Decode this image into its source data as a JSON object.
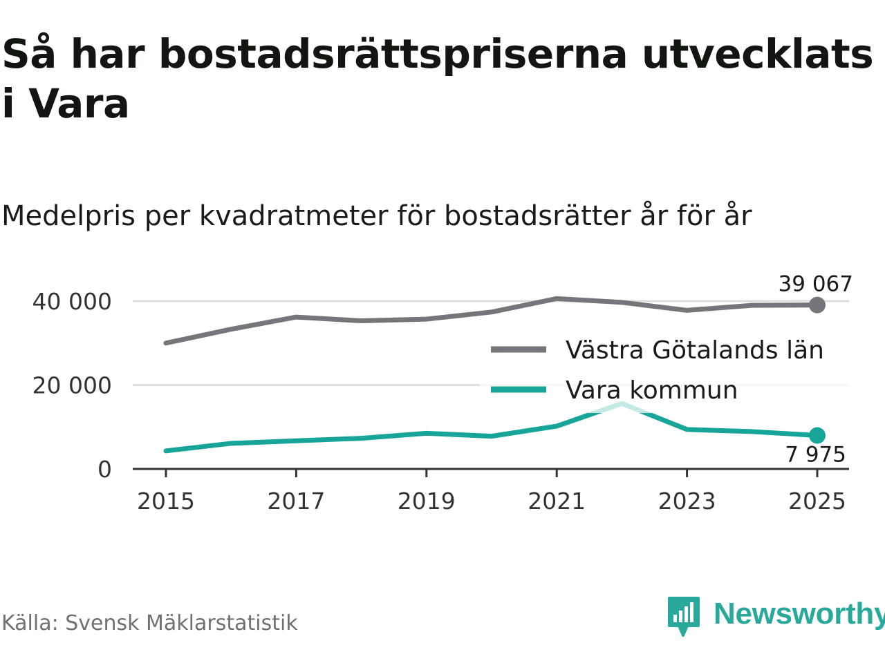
{
  "title": "Så har bostadsrättspriserna utvecklats i Vara",
  "subtitle": "Medelpris per kvadratmeter för bostadsrätter år för år",
  "source": "Källa: Svensk Mäklarstatistik",
  "logo_text": "Newsworthy",
  "colors": {
    "region": "#76757b",
    "kommun": "#17a499",
    "grid": "#dddddd",
    "axis": "#333333",
    "brand": "#28a99c"
  },
  "chart_data": {
    "type": "line",
    "title": "Medelpris per kvadratmeter för bostadsrätter år för år",
    "xlabel": "",
    "ylabel": "",
    "x": [
      2015,
      2016,
      2017,
      2018,
      2019,
      2020,
      2021,
      2022,
      2023,
      2024,
      2025
    ],
    "xticks": [
      "2015",
      "2017",
      "2019",
      "2021",
      "2023",
      "2025"
    ],
    "yticks": [
      {
        "value": 0,
        "label": "0"
      },
      {
        "value": 20000,
        "label": "20 000"
      },
      {
        "value": 40000,
        "label": "40 000"
      }
    ],
    "ylim": [
      0,
      40000
    ],
    "grid": true,
    "legend_position": "right",
    "series": [
      {
        "name": "Västra Götalands län",
        "color": "#76757b",
        "values": [
          30000,
          33300,
          36200,
          35300,
          35700,
          37400,
          40600,
          39700,
          37800,
          39000,
          39067
        ],
        "end_label": "39 067"
      },
      {
        "name": "Vara kommun",
        "color": "#17a499",
        "values": [
          4300,
          6100,
          6700,
          7300,
          8500,
          7800,
          10200,
          15600,
          9400,
          8900,
          7975
        ],
        "end_label": "7 975"
      }
    ]
  }
}
